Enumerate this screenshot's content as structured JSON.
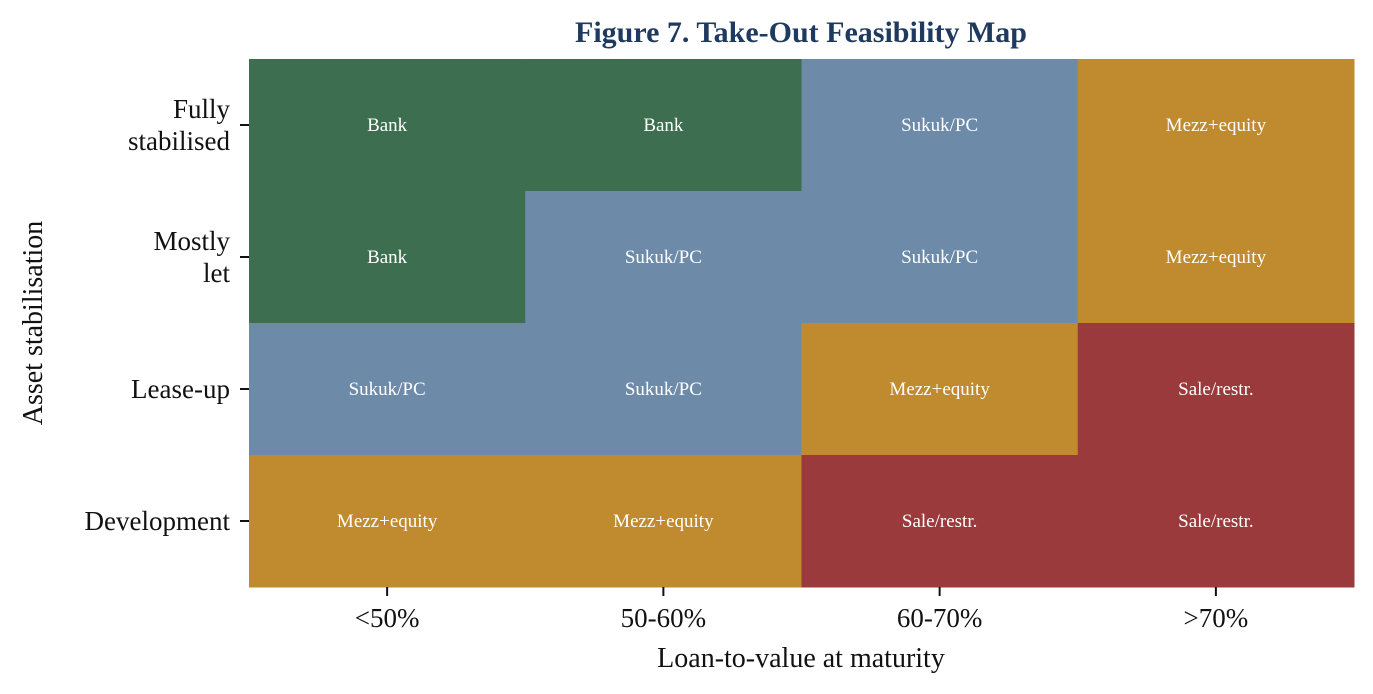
{
  "chart_data": {
    "type": "heatmap",
    "title": "Figure 7. Take-Out Feasibility Map",
    "xlabel": "Loan-to-value at maturity",
    "ylabel": "Asset stabilisation",
    "x_categories": [
      "<50%",
      "50-60%",
      "60-70%",
      ">70%"
    ],
    "y_categories": [
      [
        "Fully",
        "stabilised"
      ],
      [
        "Mostly",
        "let"
      ],
      [
        "Lease-up"
      ],
      [
        "Development"
      ]
    ],
    "cells": [
      [
        "Bank",
        "Bank",
        "Sukuk/PC",
        "Mezz+equity"
      ],
      [
        "Bank",
        "Sukuk/PC",
        "Sukuk/PC",
        "Mezz+equity"
      ],
      [
        "Sukuk/PC",
        "Sukuk/PC",
        "Mezz+equity",
        "Sale/restr."
      ],
      [
        "Mezz+equity",
        "Mezz+equity",
        "Sale/restr.",
        "Sale/restr."
      ]
    ],
    "colors": {
      "Bank": "#3d6e4f",
      "Sukuk/PC": "#6d8ba8",
      "Mezz+equity": "#bf8b2e",
      "Sale/restr.": "#9a3a3c"
    },
    "grid": false,
    "legend": "none"
  }
}
